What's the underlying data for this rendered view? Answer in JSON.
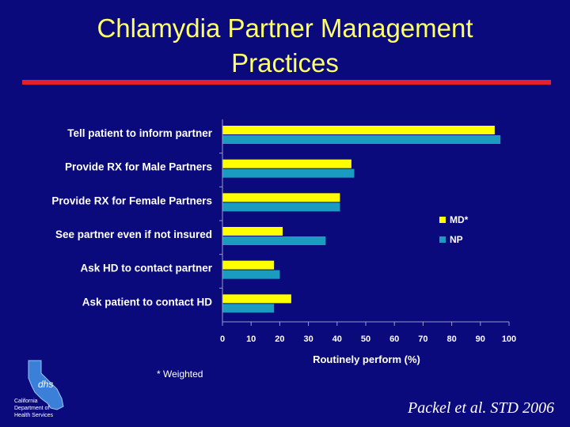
{
  "slide": {
    "title_line1": "Chlamydia Partner Management",
    "title_line2": "Practices",
    "footnote": "* Weighted",
    "citation": "Packel et al. STD 2006",
    "logo_lettering": [
      "California",
      "Department of",
      "Health Services"
    ],
    "logo_mark": "dhs"
  },
  "colors": {
    "background": "#0a0a7c",
    "title": "#ffff66",
    "rule": "#e4202a",
    "md": "#ffff00",
    "np": "#1b9bbf"
  },
  "chart_data": {
    "type": "bar",
    "orientation": "horizontal",
    "categories": [
      "Tell patient to inform partner",
      "Provide RX for Male Partners",
      "Provide RX for Female Partners",
      "See partner even if not insured",
      "Ask HD to contact partner",
      "Ask patient to contact HD"
    ],
    "series": [
      {
        "name": "MD*",
        "color": "#ffff00",
        "values": [
          95,
          45,
          41,
          21,
          18,
          24
        ]
      },
      {
        "name": "NP",
        "color": "#1b9bbf",
        "values": [
          97,
          46,
          41,
          36,
          20,
          18
        ]
      }
    ],
    "xlim": [
      0,
      100
    ],
    "xticks": [
      0,
      10,
      20,
      30,
      40,
      50,
      60,
      70,
      80,
      90,
      100
    ],
    "xlabel": "Routinely perform (%)",
    "ylabel": "",
    "grid": false,
    "legend_position": "right"
  }
}
